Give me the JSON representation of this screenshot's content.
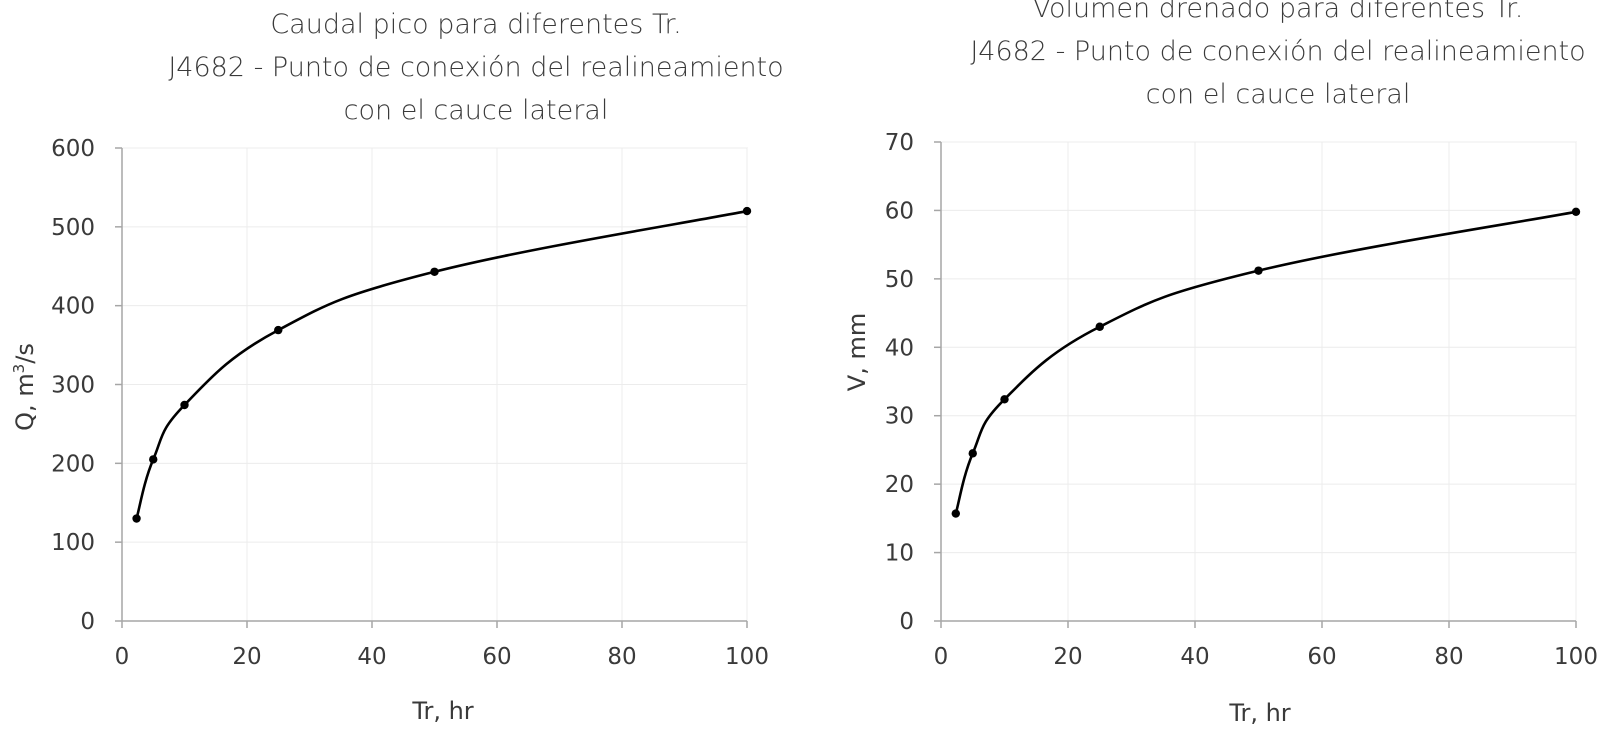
{
  "chart_data": [
    {
      "type": "line",
      "title_lines": [
        "Caudal pico para diferentes Tr.",
        "J4682 - Punto de conexión del realineamiento",
        "con el cauce lateral"
      ],
      "xlabel": "Tr, hr",
      "ylabel_prefix": "Q, m",
      "ylabel_sup": "3",
      "ylabel_suffix": "/s",
      "xlim": [
        0,
        100
      ],
      "ylim": [
        0,
        600
      ],
      "xticks": [
        "0",
        "20",
        "40",
        "60",
        "80",
        "100"
      ],
      "yticks": [
        "0",
        "100",
        "200",
        "300",
        "400",
        "500",
        "600"
      ],
      "grid": true,
      "legend": "none",
      "x": [
        2.33,
        5,
        10,
        25,
        50,
        100
      ],
      "y": [
        130,
        205,
        274,
        369,
        443,
        520
      ]
    },
    {
      "type": "line",
      "title_lines": [
        "Volumen drenado para diferentes Tr.",
        "J4682 - Punto de conexión del realineamiento",
        "con el cauce lateral"
      ],
      "xlabel": "Tr, hr",
      "ylabel": "V, mm",
      "xlim": [
        0,
        100
      ],
      "ylim": [
        0,
        70
      ],
      "xticks": [
        "0",
        "20",
        "40",
        "60",
        "80",
        "100"
      ],
      "yticks": [
        "0",
        "10",
        "20",
        "30",
        "40",
        "50",
        "60",
        "70"
      ],
      "grid": true,
      "legend": "none",
      "x": [
        2.33,
        5,
        10,
        25,
        50,
        100
      ],
      "y": [
        15.7,
        24.5,
        32.4,
        43.0,
        51.2,
        59.8
      ]
    }
  ],
  "colors": {
    "series": "#000000",
    "axis": "#a6a6a6",
    "grid": "#ececec",
    "text": "#3a3a3a"
  }
}
